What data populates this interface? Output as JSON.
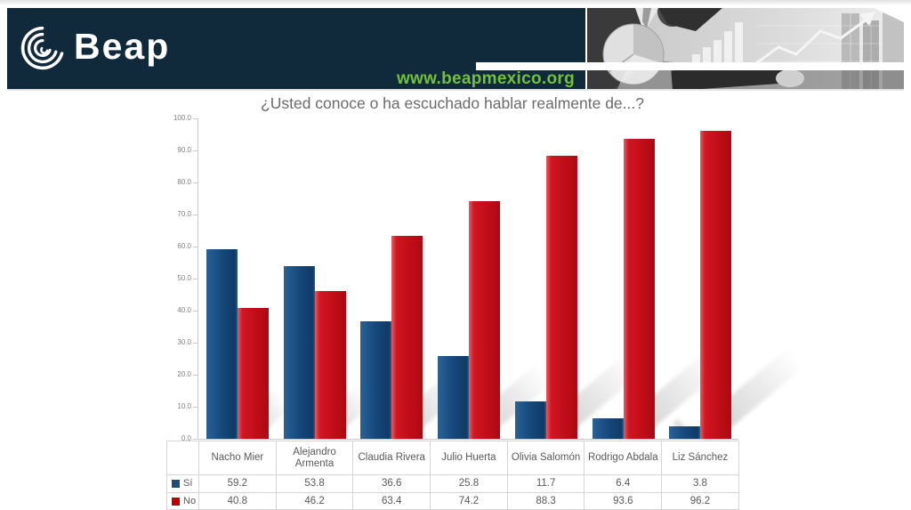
{
  "header": {
    "logo_text": "Beap",
    "url": "www.beapmexico.org",
    "colors": {
      "banner_bg": "#10293b",
      "url_green": "#72c13e",
      "logo_white": "#ffffff"
    }
  },
  "chart_data": {
    "type": "bar",
    "title": "¿Usted conoce o ha escuchado hablar realmente de...?",
    "categories": [
      "Nacho Mier",
      "Alejandro Armenta",
      "Claudia Rivera",
      "Julio Huerta",
      "Olivia Salomón",
      "Rodrigo Abdala",
      "Liz Sánchez"
    ],
    "series": [
      {
        "name": "Sí",
        "color": "#1f4e79",
        "values": [
          59.2,
          53.8,
          36.6,
          25.8,
          11.7,
          6.4,
          3.8
        ]
      },
      {
        "name": "No",
        "color": "#c00000",
        "values": [
          40.8,
          46.2,
          63.4,
          74.2,
          88.3,
          93.6,
          96.2
        ]
      }
    ],
    "xlabel": "",
    "ylabel": "",
    "ylim": [
      0,
      100
    ],
    "ytick_step": 10,
    "ytick_labels": [
      "0.0",
      "10.0",
      "20.0",
      "30.0",
      "40.0",
      "50.0",
      "60.0",
      "70.0",
      "80.0",
      "90.0",
      "100.0"
    ],
    "grid": false,
    "legend_position": "data-table-left",
    "has_data_table": true,
    "bar_effect": "perspective-shadow-upper-right"
  }
}
